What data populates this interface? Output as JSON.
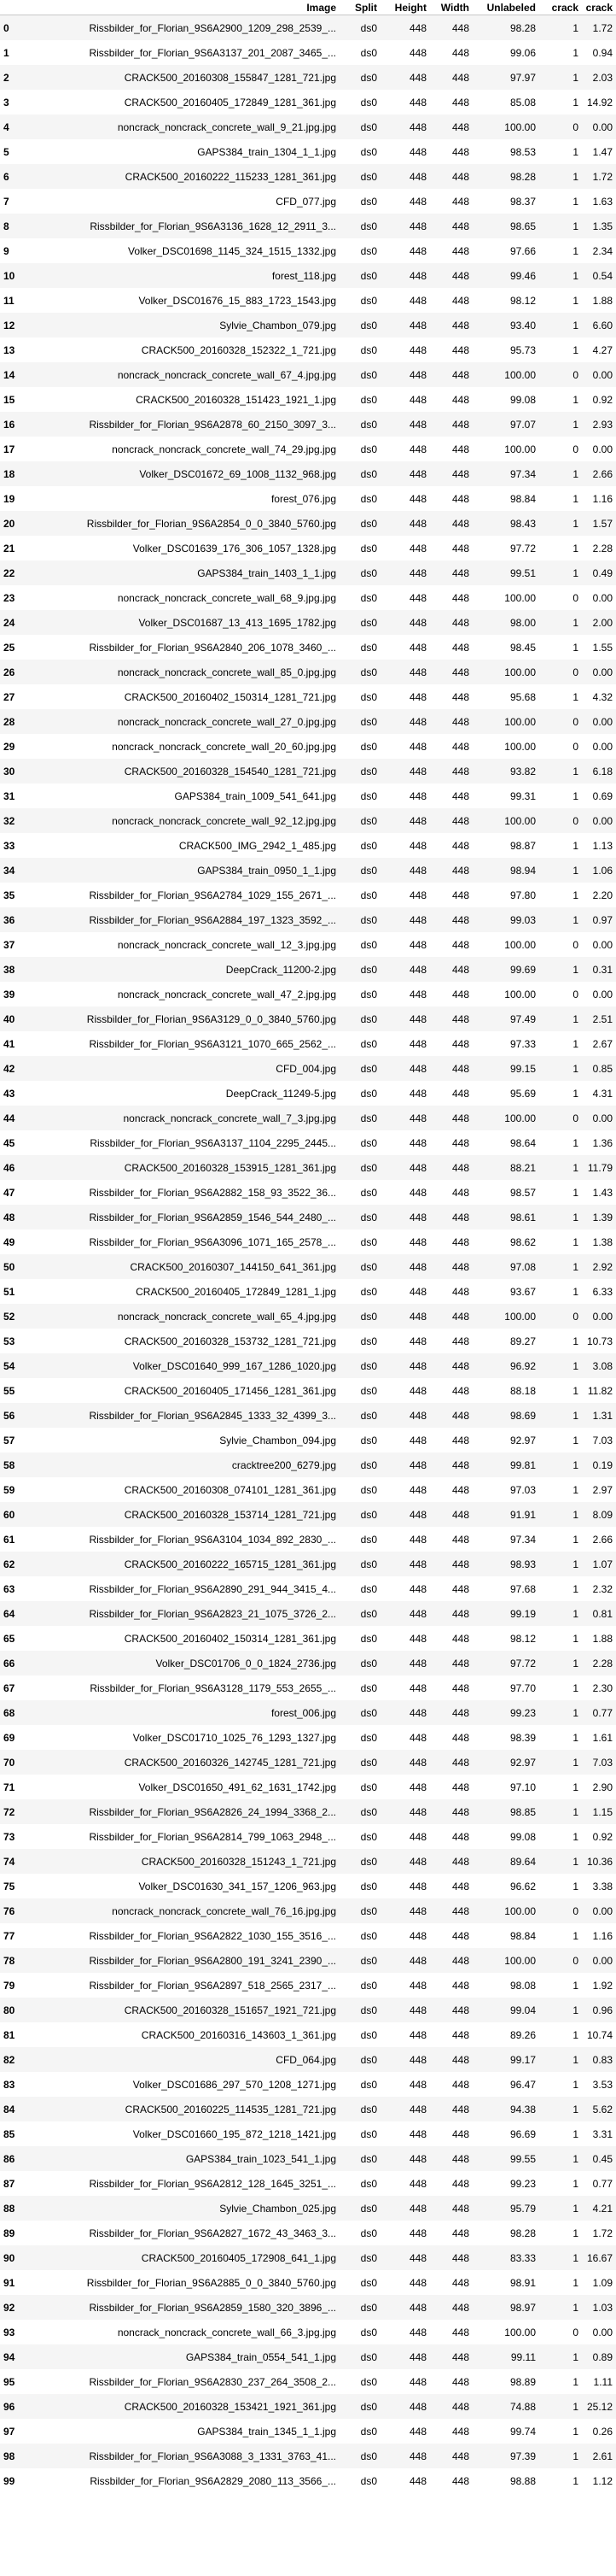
{
  "columns": [
    "",
    "Image",
    "Split",
    "Height",
    "Width",
    "Unlabeled",
    "crack",
    "crack"
  ],
  "rows": [
    [
      "0",
      "Rissbilder_for_Florian_9S6A2900_1209_298_2539_...",
      "ds0",
      "448",
      "448",
      "98.28",
      "1",
      "1.72"
    ],
    [
      "1",
      "Rissbilder_for_Florian_9S6A3137_201_2087_3465_...",
      "ds0",
      "448",
      "448",
      "99.06",
      "1",
      "0.94"
    ],
    [
      "2",
      "CRACK500_20160308_155847_1281_721.jpg",
      "ds0",
      "448",
      "448",
      "97.97",
      "1",
      "2.03"
    ],
    [
      "3",
      "CRACK500_20160405_172849_1281_361.jpg",
      "ds0",
      "448",
      "448",
      "85.08",
      "1",
      "14.92"
    ],
    [
      "4",
      "noncrack_noncrack_concrete_wall_9_21.jpg.jpg",
      "ds0",
      "448",
      "448",
      "100.00",
      "0",
      "0.00"
    ],
    [
      "5",
      "GAPS384_train_1304_1_1.jpg",
      "ds0",
      "448",
      "448",
      "98.53",
      "1",
      "1.47"
    ],
    [
      "6",
      "CRACK500_20160222_115233_1281_361.jpg",
      "ds0",
      "448",
      "448",
      "98.28",
      "1",
      "1.72"
    ],
    [
      "7",
      "CFD_077.jpg",
      "ds0",
      "448",
      "448",
      "98.37",
      "1",
      "1.63"
    ],
    [
      "8",
      "Rissbilder_for_Florian_9S6A3136_1628_12_2911_3...",
      "ds0",
      "448",
      "448",
      "98.65",
      "1",
      "1.35"
    ],
    [
      "9",
      "Volker_DSC01698_1145_324_1515_1332.jpg",
      "ds0",
      "448",
      "448",
      "97.66",
      "1",
      "2.34"
    ],
    [
      "10",
      "forest_118.jpg",
      "ds0",
      "448",
      "448",
      "99.46",
      "1",
      "0.54"
    ],
    [
      "11",
      "Volker_DSC01676_15_883_1723_1543.jpg",
      "ds0",
      "448",
      "448",
      "98.12",
      "1",
      "1.88"
    ],
    [
      "12",
      "Sylvie_Chambon_079.jpg",
      "ds0",
      "448",
      "448",
      "93.40",
      "1",
      "6.60"
    ],
    [
      "13",
      "CRACK500_20160328_152322_1_721.jpg",
      "ds0",
      "448",
      "448",
      "95.73",
      "1",
      "4.27"
    ],
    [
      "14",
      "noncrack_noncrack_concrete_wall_67_4.jpg.jpg",
      "ds0",
      "448",
      "448",
      "100.00",
      "0",
      "0.00"
    ],
    [
      "15",
      "CRACK500_20160328_151423_1921_1.jpg",
      "ds0",
      "448",
      "448",
      "99.08",
      "1",
      "0.92"
    ],
    [
      "16",
      "Rissbilder_for_Florian_9S6A2878_60_2150_3097_3...",
      "ds0",
      "448",
      "448",
      "97.07",
      "1",
      "2.93"
    ],
    [
      "17",
      "noncrack_noncrack_concrete_wall_74_29.jpg.jpg",
      "ds0",
      "448",
      "448",
      "100.00",
      "0",
      "0.00"
    ],
    [
      "18",
      "Volker_DSC01672_69_1008_1132_968.jpg",
      "ds0",
      "448",
      "448",
      "97.34",
      "1",
      "2.66"
    ],
    [
      "19",
      "forest_076.jpg",
      "ds0",
      "448",
      "448",
      "98.84",
      "1",
      "1.16"
    ],
    [
      "20",
      "Rissbilder_for_Florian_9S6A2854_0_0_3840_5760.jpg",
      "ds0",
      "448",
      "448",
      "98.43",
      "1",
      "1.57"
    ],
    [
      "21",
      "Volker_DSC01639_176_306_1057_1328.jpg",
      "ds0",
      "448",
      "448",
      "97.72",
      "1",
      "2.28"
    ],
    [
      "22",
      "GAPS384_train_1403_1_1.jpg",
      "ds0",
      "448",
      "448",
      "99.51",
      "1",
      "0.49"
    ],
    [
      "23",
      "noncrack_noncrack_concrete_wall_68_9.jpg.jpg",
      "ds0",
      "448",
      "448",
      "100.00",
      "0",
      "0.00"
    ],
    [
      "24",
      "Volker_DSC01687_13_413_1695_1782.jpg",
      "ds0",
      "448",
      "448",
      "98.00",
      "1",
      "2.00"
    ],
    [
      "25",
      "Rissbilder_for_Florian_9S6A2840_206_1078_3460_...",
      "ds0",
      "448",
      "448",
      "98.45",
      "1",
      "1.55"
    ],
    [
      "26",
      "noncrack_noncrack_concrete_wall_85_0.jpg.jpg",
      "ds0",
      "448",
      "448",
      "100.00",
      "0",
      "0.00"
    ],
    [
      "27",
      "CRACK500_20160402_150314_1281_721.jpg",
      "ds0",
      "448",
      "448",
      "95.68",
      "1",
      "4.32"
    ],
    [
      "28",
      "noncrack_noncrack_concrete_wall_27_0.jpg.jpg",
      "ds0",
      "448",
      "448",
      "100.00",
      "0",
      "0.00"
    ],
    [
      "29",
      "noncrack_noncrack_concrete_wall_20_60.jpg.jpg",
      "ds0",
      "448",
      "448",
      "100.00",
      "0",
      "0.00"
    ],
    [
      "30",
      "CRACK500_20160328_154540_1281_721.jpg",
      "ds0",
      "448",
      "448",
      "93.82",
      "1",
      "6.18"
    ],
    [
      "31",
      "GAPS384_train_1009_541_641.jpg",
      "ds0",
      "448",
      "448",
      "99.31",
      "1",
      "0.69"
    ],
    [
      "32",
      "noncrack_noncrack_concrete_wall_92_12.jpg.jpg",
      "ds0",
      "448",
      "448",
      "100.00",
      "0",
      "0.00"
    ],
    [
      "33",
      "CRACK500_IMG_2942_1_485.jpg",
      "ds0",
      "448",
      "448",
      "98.87",
      "1",
      "1.13"
    ],
    [
      "34",
      "GAPS384_train_0950_1_1.jpg",
      "ds0",
      "448",
      "448",
      "98.94",
      "1",
      "1.06"
    ],
    [
      "35",
      "Rissbilder_for_Florian_9S6A2784_1029_155_2671_...",
      "ds0",
      "448",
      "448",
      "97.80",
      "1",
      "2.20"
    ],
    [
      "36",
      "Rissbilder_for_Florian_9S6A2884_197_1323_3592_...",
      "ds0",
      "448",
      "448",
      "99.03",
      "1",
      "0.97"
    ],
    [
      "37",
      "noncrack_noncrack_concrete_wall_12_3.jpg.jpg",
      "ds0",
      "448",
      "448",
      "100.00",
      "0",
      "0.00"
    ],
    [
      "38",
      "DeepCrack_11200-2.jpg",
      "ds0",
      "448",
      "448",
      "99.69",
      "1",
      "0.31"
    ],
    [
      "39",
      "noncrack_noncrack_concrete_wall_47_2.jpg.jpg",
      "ds0",
      "448",
      "448",
      "100.00",
      "0",
      "0.00"
    ],
    [
      "40",
      "Rissbilder_for_Florian_9S6A3129_0_0_3840_5760.jpg",
      "ds0",
      "448",
      "448",
      "97.49",
      "1",
      "2.51"
    ],
    [
      "41",
      "Rissbilder_for_Florian_9S6A3121_1070_665_2562_...",
      "ds0",
      "448",
      "448",
      "97.33",
      "1",
      "2.67"
    ],
    [
      "42",
      "CFD_004.jpg",
      "ds0",
      "448",
      "448",
      "99.15",
      "1",
      "0.85"
    ],
    [
      "43",
      "DeepCrack_11249-5.jpg",
      "ds0",
      "448",
      "448",
      "95.69",
      "1",
      "4.31"
    ],
    [
      "44",
      "noncrack_noncrack_concrete_wall_7_3.jpg.jpg",
      "ds0",
      "448",
      "448",
      "100.00",
      "0",
      "0.00"
    ],
    [
      "45",
      "Rissbilder_for_Florian_9S6A3137_1104_2295_2445...",
      "ds0",
      "448",
      "448",
      "98.64",
      "1",
      "1.36"
    ],
    [
      "46",
      "CRACK500_20160328_153915_1281_361.jpg",
      "ds0",
      "448",
      "448",
      "88.21",
      "1",
      "11.79"
    ],
    [
      "47",
      "Rissbilder_for_Florian_9S6A2882_158_93_3522_36...",
      "ds0",
      "448",
      "448",
      "98.57",
      "1",
      "1.43"
    ],
    [
      "48",
      "Rissbilder_for_Florian_9S6A2859_1546_544_2480_...",
      "ds0",
      "448",
      "448",
      "98.61",
      "1",
      "1.39"
    ],
    [
      "49",
      "Rissbilder_for_Florian_9S6A3096_1071_165_2578_...",
      "ds0",
      "448",
      "448",
      "98.62",
      "1",
      "1.38"
    ],
    [
      "50",
      "CRACK500_20160307_144150_641_361.jpg",
      "ds0",
      "448",
      "448",
      "97.08",
      "1",
      "2.92"
    ],
    [
      "51",
      "CRACK500_20160405_172849_1281_1.jpg",
      "ds0",
      "448",
      "448",
      "93.67",
      "1",
      "6.33"
    ],
    [
      "52",
      "noncrack_noncrack_concrete_wall_65_4.jpg.jpg",
      "ds0",
      "448",
      "448",
      "100.00",
      "0",
      "0.00"
    ],
    [
      "53",
      "CRACK500_20160328_153732_1281_721.jpg",
      "ds0",
      "448",
      "448",
      "89.27",
      "1",
      "10.73"
    ],
    [
      "54",
      "Volker_DSC01640_999_167_1286_1020.jpg",
      "ds0",
      "448",
      "448",
      "96.92",
      "1",
      "3.08"
    ],
    [
      "55",
      "CRACK500_20160405_171456_1281_361.jpg",
      "ds0",
      "448",
      "448",
      "88.18",
      "1",
      "11.82"
    ],
    [
      "56",
      "Rissbilder_for_Florian_9S6A2845_1333_32_4399_3...",
      "ds0",
      "448",
      "448",
      "98.69",
      "1",
      "1.31"
    ],
    [
      "57",
      "Sylvie_Chambon_094.jpg",
      "ds0",
      "448",
      "448",
      "92.97",
      "1",
      "7.03"
    ],
    [
      "58",
      "cracktree200_6279.jpg",
      "ds0",
      "448",
      "448",
      "99.81",
      "1",
      "0.19"
    ],
    [
      "59",
      "CRACK500_20160308_074101_1281_361.jpg",
      "ds0",
      "448",
      "448",
      "97.03",
      "1",
      "2.97"
    ],
    [
      "60",
      "CRACK500_20160328_153714_1281_721.jpg",
      "ds0",
      "448",
      "448",
      "91.91",
      "1",
      "8.09"
    ],
    [
      "61",
      "Rissbilder_for_Florian_9S6A3104_1034_892_2830_...",
      "ds0",
      "448",
      "448",
      "97.34",
      "1",
      "2.66"
    ],
    [
      "62",
      "CRACK500_20160222_165715_1281_361.jpg",
      "ds0",
      "448",
      "448",
      "98.93",
      "1",
      "1.07"
    ],
    [
      "63",
      "Rissbilder_for_Florian_9S6A2890_291_944_3415_4...",
      "ds0",
      "448",
      "448",
      "97.68",
      "1",
      "2.32"
    ],
    [
      "64",
      "Rissbilder_for_Florian_9S6A2823_21_1075_3726_2...",
      "ds0",
      "448",
      "448",
      "99.19",
      "1",
      "0.81"
    ],
    [
      "65",
      "CRACK500_20160402_150314_1281_361.jpg",
      "ds0",
      "448",
      "448",
      "98.12",
      "1",
      "1.88"
    ],
    [
      "66",
      "Volker_DSC01706_0_0_1824_2736.jpg",
      "ds0",
      "448",
      "448",
      "97.72",
      "1",
      "2.28"
    ],
    [
      "67",
      "Rissbilder_for_Florian_9S6A3128_1179_553_2655_...",
      "ds0",
      "448",
      "448",
      "97.70",
      "1",
      "2.30"
    ],
    [
      "68",
      "forest_006.jpg",
      "ds0",
      "448",
      "448",
      "99.23",
      "1",
      "0.77"
    ],
    [
      "69",
      "Volker_DSC01710_1025_76_1293_1327.jpg",
      "ds0",
      "448",
      "448",
      "98.39",
      "1",
      "1.61"
    ],
    [
      "70",
      "CRACK500_20160326_142745_1281_721.jpg",
      "ds0",
      "448",
      "448",
      "92.97",
      "1",
      "7.03"
    ],
    [
      "71",
      "Volker_DSC01650_491_62_1631_1742.jpg",
      "ds0",
      "448",
      "448",
      "97.10",
      "1",
      "2.90"
    ],
    [
      "72",
      "Rissbilder_for_Florian_9S6A2826_24_1994_3368_2...",
      "ds0",
      "448",
      "448",
      "98.85",
      "1",
      "1.15"
    ],
    [
      "73",
      "Rissbilder_for_Florian_9S6A2814_799_1063_2948_...",
      "ds0",
      "448",
      "448",
      "99.08",
      "1",
      "0.92"
    ],
    [
      "74",
      "CRACK500_20160328_151243_1_721.jpg",
      "ds0",
      "448",
      "448",
      "89.64",
      "1",
      "10.36"
    ],
    [
      "75",
      "Volker_DSC01630_341_157_1206_963.jpg",
      "ds0",
      "448",
      "448",
      "96.62",
      "1",
      "3.38"
    ],
    [
      "76",
      "noncrack_noncrack_concrete_wall_76_16.jpg.jpg",
      "ds0",
      "448",
      "448",
      "100.00",
      "0",
      "0.00"
    ],
    [
      "77",
      "Rissbilder_for_Florian_9S6A2822_1030_155_3516_...",
      "ds0",
      "448",
      "448",
      "98.84",
      "1",
      "1.16"
    ],
    [
      "78",
      "Rissbilder_for_Florian_9S6A2800_191_3241_2390_...",
      "ds0",
      "448",
      "448",
      "100.00",
      "0",
      "0.00"
    ],
    [
      "79",
      "Rissbilder_for_Florian_9S6A2897_518_2565_2317_...",
      "ds0",
      "448",
      "448",
      "98.08",
      "1",
      "1.92"
    ],
    [
      "80",
      "CRACK500_20160328_151657_1921_721.jpg",
      "ds0",
      "448",
      "448",
      "99.04",
      "1",
      "0.96"
    ],
    [
      "81",
      "CRACK500_20160316_143603_1_361.jpg",
      "ds0",
      "448",
      "448",
      "89.26",
      "1",
      "10.74"
    ],
    [
      "82",
      "CFD_064.jpg",
      "ds0",
      "448",
      "448",
      "99.17",
      "1",
      "0.83"
    ],
    [
      "83",
      "Volker_DSC01686_297_570_1208_1271.jpg",
      "ds0",
      "448",
      "448",
      "96.47",
      "1",
      "3.53"
    ],
    [
      "84",
      "CRACK500_20160225_114535_1281_721.jpg",
      "ds0",
      "448",
      "448",
      "94.38",
      "1",
      "5.62"
    ],
    [
      "85",
      "Volker_DSC01660_195_872_1218_1421.jpg",
      "ds0",
      "448",
      "448",
      "96.69",
      "1",
      "3.31"
    ],
    [
      "86",
      "GAPS384_train_1023_541_1.jpg",
      "ds0",
      "448",
      "448",
      "99.55",
      "1",
      "0.45"
    ],
    [
      "87",
      "Rissbilder_for_Florian_9S6A2812_128_1645_3251_...",
      "ds0",
      "448",
      "448",
      "99.23",
      "1",
      "0.77"
    ],
    [
      "88",
      "Sylvie_Chambon_025.jpg",
      "ds0",
      "448",
      "448",
      "95.79",
      "1",
      "4.21"
    ],
    [
      "89",
      "Rissbilder_for_Florian_9S6A2827_1672_43_3463_3...",
      "ds0",
      "448",
      "448",
      "98.28",
      "1",
      "1.72"
    ],
    [
      "90",
      "CRACK500_20160405_172908_641_1.jpg",
      "ds0",
      "448",
      "448",
      "83.33",
      "1",
      "16.67"
    ],
    [
      "91",
      "Rissbilder_for_Florian_9S6A2885_0_0_3840_5760.jpg",
      "ds0",
      "448",
      "448",
      "98.91",
      "1",
      "1.09"
    ],
    [
      "92",
      "Rissbilder_for_Florian_9S6A2859_1580_320_3896_...",
      "ds0",
      "448",
      "448",
      "98.97",
      "1",
      "1.03"
    ],
    [
      "93",
      "noncrack_noncrack_concrete_wall_66_3.jpg.jpg",
      "ds0",
      "448",
      "448",
      "100.00",
      "0",
      "0.00"
    ],
    [
      "94",
      "GAPS384_train_0554_541_1.jpg",
      "ds0",
      "448",
      "448",
      "99.11",
      "1",
      "0.89"
    ],
    [
      "95",
      "Rissbilder_for_Florian_9S6A2830_237_264_3508_2...",
      "ds0",
      "448",
      "448",
      "98.89",
      "1",
      "1.11"
    ],
    [
      "96",
      "CRACK500_20160328_153421_1921_361.jpg",
      "ds0",
      "448",
      "448",
      "74.88",
      "1",
      "25.12"
    ],
    [
      "97",
      "GAPS384_train_1345_1_1.jpg",
      "ds0",
      "448",
      "448",
      "99.74",
      "1",
      "0.26"
    ],
    [
      "98",
      "Rissbilder_for_Florian_9S6A3088_3_1331_3763_41...",
      "ds0",
      "448",
      "448",
      "97.39",
      "1",
      "2.61"
    ],
    [
      "99",
      "Rissbilder_for_Florian_9S6A2829_2080_113_3566_...",
      "ds0",
      "448",
      "448",
      "98.88",
      "1",
      "1.12"
    ]
  ]
}
